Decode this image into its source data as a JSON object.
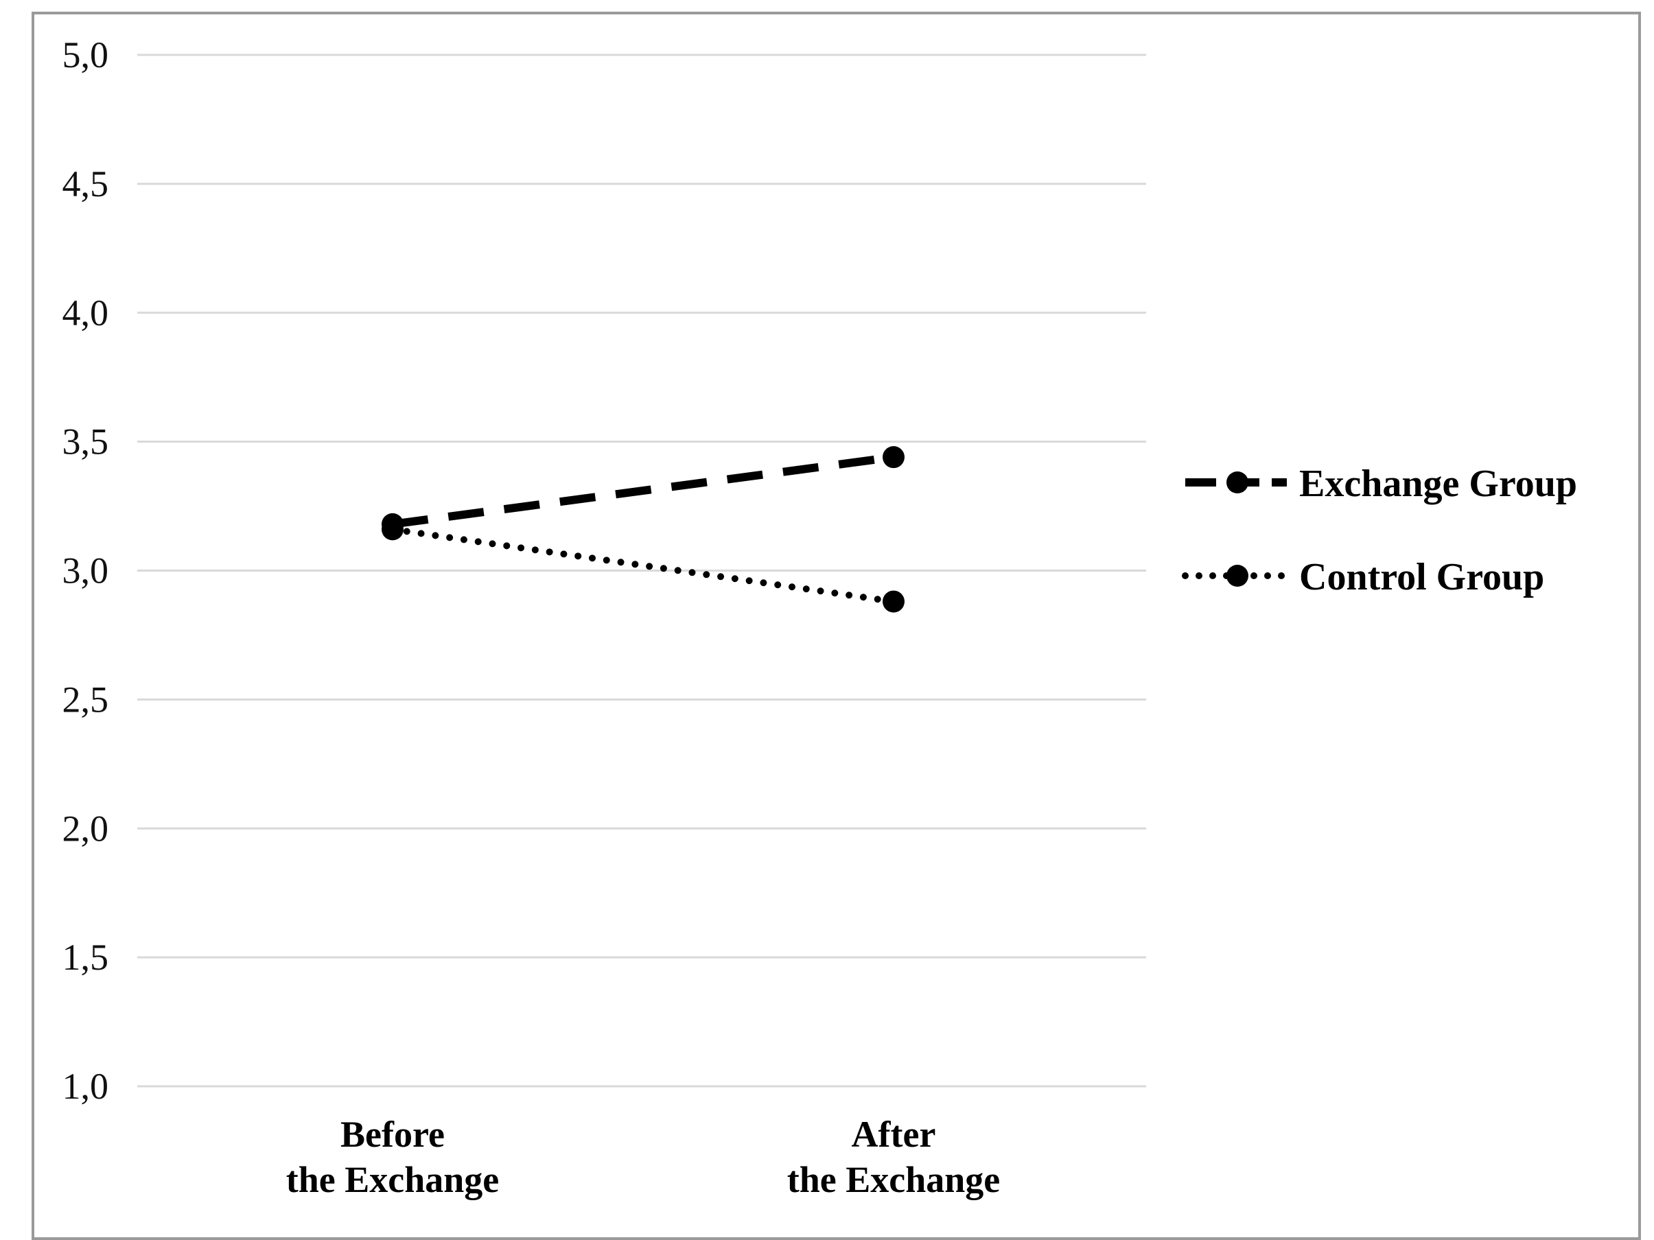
{
  "chart_data": {
    "type": "line",
    "categories": [
      [
        "Before",
        "the Exchange"
      ],
      [
        "After",
        "the Exchange"
      ]
    ],
    "series": [
      {
        "name": "Exchange Group",
        "values": [
          3.18,
          3.44
        ],
        "line_style": "dashed",
        "color": "#000000"
      },
      {
        "name": "Control Group",
        "values": [
          3.16,
          2.88
        ],
        "line_style": "dotted",
        "color": "#000000"
      }
    ],
    "y_ticks": [
      "1,0",
      "1,5",
      "2,0",
      "2,5",
      "3,0",
      "3,5",
      "4,0",
      "4,5",
      "5,0"
    ],
    "ylim": [
      1.0,
      5.0
    ],
    "grid": true,
    "legend_position": "right",
    "title": "",
    "xlabel": "",
    "ylabel": ""
  }
}
